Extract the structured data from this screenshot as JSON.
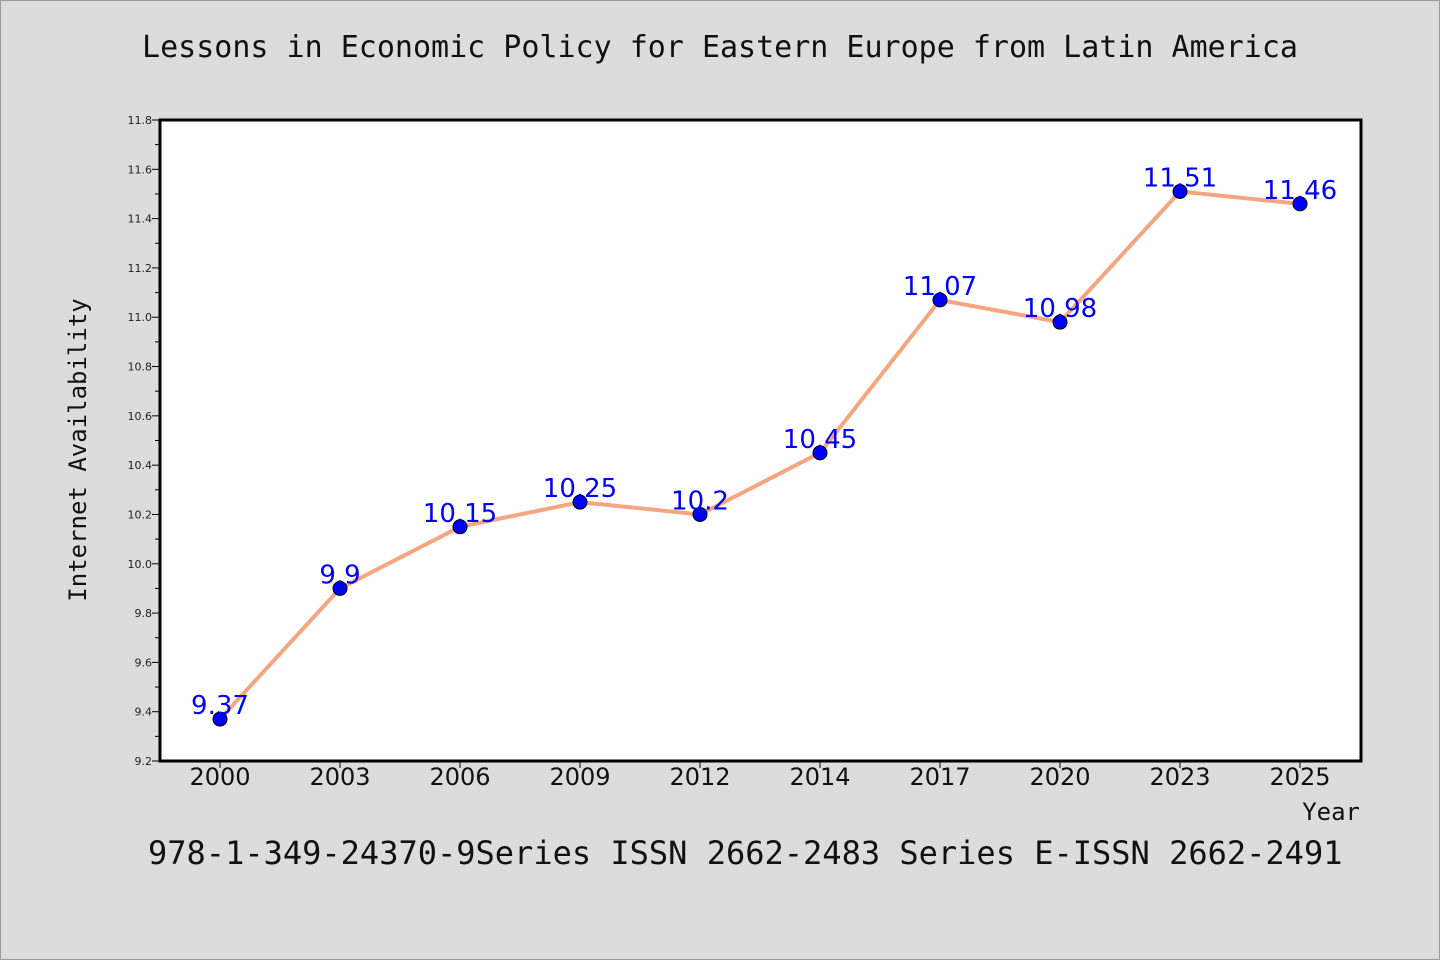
{
  "title": "Lessons in Economic Policy for Eastern Europe from Latin America",
  "footer": "978-1-349-24370-9Series ISSN 2662-2483 Series E-ISSN 2662-2491",
  "chart_data": {
    "type": "line",
    "title": "Lessons in Economic Policy for Eastern Europe from Latin America",
    "xlabel": "Year",
    "ylabel": "Internet Availability",
    "categories": [
      "2000",
      "2003",
      "2006",
      "2009",
      "2012",
      "2014",
      "2017",
      "2020",
      "2023",
      "2025"
    ],
    "series": [
      {
        "values": [
          9.37,
          9.9,
          10.15,
          10.25,
          10.2,
          10.45,
          11.07,
          10.98,
          11.51,
          11.46
        ],
        "labels": [
          "9.37",
          "9.9",
          "10.15",
          "10.25",
          "10.2",
          "10.45",
          "11.07",
          "10.98",
          "11.51",
          "11.46"
        ],
        "line_color": "#f4a582",
        "marker_color": "#0000ff"
      }
    ],
    "ylim": [
      9.2,
      11.8
    ],
    "yticks": [
      "9.2",
      "9.4",
      "9.6",
      "9.8",
      "10.0",
      "10.2",
      "10.4",
      "10.6",
      "10.8",
      "11.0",
      "11.2",
      "11.4",
      "11.6",
      "11.8"
    ],
    "grid": false,
    "legend": "none"
  }
}
